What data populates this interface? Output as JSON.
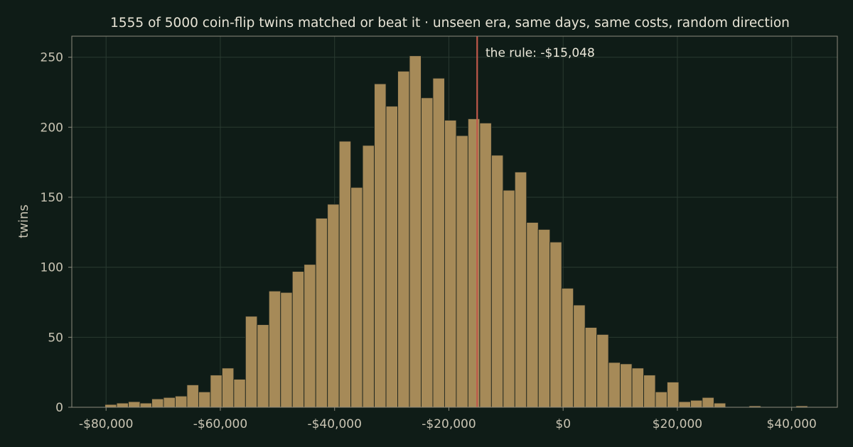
{
  "chart_data": {
    "type": "bar",
    "title": "1555 of 5000 coin-flip twins matched or beat it  ·  unseen era, same days, same costs, random direction",
    "xlabel": "",
    "ylabel": "twins",
    "xlim": [
      -86000,
      48000
    ],
    "ylim": [
      0,
      265
    ],
    "grid": true,
    "x_tick_values": [
      -80000,
      -60000,
      -40000,
      -20000,
      0,
      20000,
      40000
    ],
    "x_tick_labels": [
      "-$80,000",
      "-$60,000",
      "-$40,000",
      "-$20,000",
      "$0",
      "$20,000",
      "$40,000"
    ],
    "y_tick_values": [
      0,
      50,
      100,
      150,
      200,
      250
    ],
    "y_tick_labels": [
      "0",
      "50",
      "100",
      "150",
      "200",
      "250"
    ],
    "bin_start": -80200,
    "bin_width": 2050,
    "values": [
      2,
      3,
      4,
      3,
      6,
      7,
      8,
      16,
      11,
      23,
      28,
      20,
      65,
      59,
      83,
      82,
      97,
      102,
      135,
      145,
      190,
      157,
      187,
      231,
      215,
      240,
      251,
      221,
      235,
      205,
      194,
      206,
      203,
      180,
      155,
      168,
      132,
      127,
      118,
      85,
      73,
      57,
      52,
      32,
      31,
      28,
      23,
      11,
      18,
      4,
      5,
      7,
      3,
      0,
      0,
      1,
      0,
      0,
      0,
      1
    ],
    "reference_line": {
      "x": -15048,
      "label": "the rule: -$15,048"
    },
    "colors": {
      "background": "#0f1c17",
      "bar_fill": "#a68a58",
      "bar_edge": "#1a231d",
      "reference_line": "#c0584a",
      "grid": "#2a3a31",
      "axis": "#8d8a7d",
      "text": "#c9c4b3"
    }
  }
}
